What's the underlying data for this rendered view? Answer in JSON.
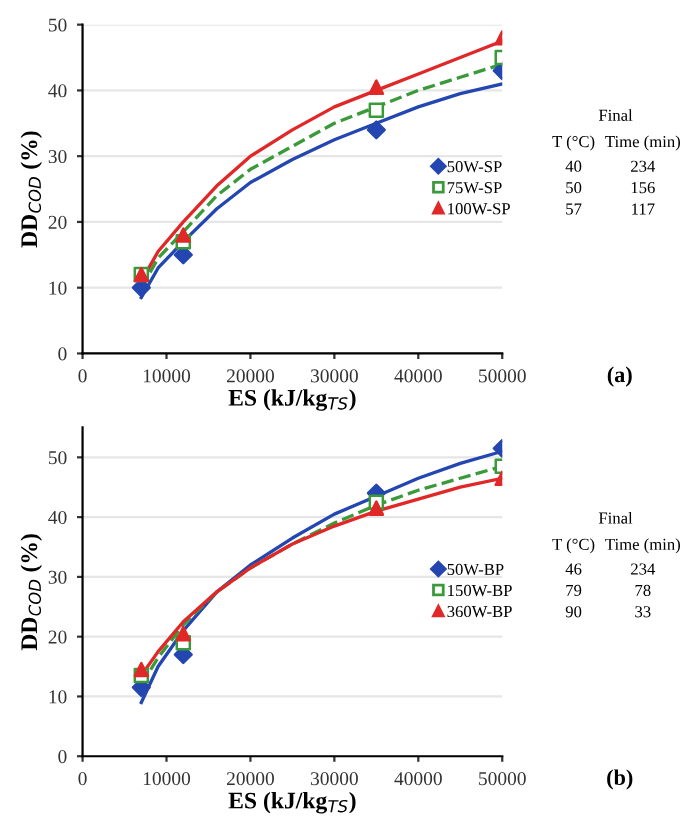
{
  "chart_data": [
    {
      "type": "scatter",
      "xlabel": "ES (kJ/kg$_{TS}$)",
      "ylabel": "DD$_{COD}$ (%)",
      "xlim": [
        0,
        50000
      ],
      "ylim": [
        0,
        50
      ],
      "xticks": [
        0,
        10000,
        20000,
        30000,
        40000,
        50000
      ],
      "yticks": [
        0,
        10,
        20,
        30,
        40,
        50
      ],
      "grid": "y",
      "legend": "right",
      "x": [
        7000,
        12000,
        35000,
        50000
      ],
      "series": [
        {
          "name": "50W-SP",
          "color": "#2446b0",
          "marker": "diamond",
          "values": [
            10,
            15,
            34,
            43
          ]
        },
        {
          "name": "75W-SP",
          "color": "#3a9a3a",
          "marker": "square",
          "values": [
            12,
            17,
            37,
            45
          ]
        },
        {
          "name": "100W-SP",
          "color": "#e02828",
          "marker": "triangle",
          "values": [
            12,
            18,
            40.5,
            48
          ]
        },
        {
          "type": "line",
          "color": "#2446b0",
          "line_style": "solid",
          "x": [
            7000,
            9000,
            12000,
            16000,
            20000,
            25000,
            30000,
            35000,
            40000,
            45000,
            50000
          ],
          "values": [
            8.5,
            13,
            17,
            22,
            26,
            29.5,
            32.5,
            35,
            37.5,
            39.5,
            41
          ]
        },
        {
          "type": "line",
          "color": "#3a9a3a",
          "line_style": "dashed",
          "x": [
            7000,
            9000,
            12000,
            16000,
            20000,
            25000,
            30000,
            35000,
            40000,
            45000,
            50000
          ],
          "values": [
            10,
            14.5,
            18.5,
            24,
            28,
            31.5,
            35,
            37.5,
            40,
            42,
            44
          ]
        },
        {
          "type": "line",
          "color": "#e02828",
          "line_style": "solid",
          "x": [
            7000,
            9000,
            12000,
            16000,
            20000,
            25000,
            30000,
            35000,
            40000,
            45000,
            50000
          ],
          "values": [
            11,
            15.5,
            20,
            25.5,
            30,
            34,
            37.5,
            40,
            42.5,
            45,
            47.5
          ]
        }
      ],
      "annotations": [
        "Final",
        "T (°C)",
        "Time (min)",
        "40",
        "234",
        "50",
        "156",
        "57",
        "117",
        "(a)"
      ]
    },
    {
      "type": "scatter",
      "xlabel": "ES (kJ/kg$_{TS}$)",
      "ylabel": "DD$_{COD}$ (%)",
      "xlim": [
        0,
        50000
      ],
      "ylim": [
        0,
        55
      ],
      "xticks": [
        0,
        10000,
        20000,
        30000,
        40000,
        50000
      ],
      "yticks": [
        0,
        10,
        20,
        30,
        40,
        50
      ],
      "grid": "y",
      "legend": "right",
      "x": [
        7000,
        12000,
        35000,
        50000
      ],
      "series": [
        {
          "name": "50W-BP",
          "color": "#2446b0",
          "marker": "diamond",
          "values": [
            11.5,
            17,
            44,
            51.5
          ]
        },
        {
          "name": "150W-BP",
          "color": "#3a9a3a",
          "marker": "square",
          "values": [
            13.5,
            19,
            42.5,
            48.5
          ]
        },
        {
          "name": "360W-BP",
          "color": "#e02828",
          "marker": "triangle",
          "values": [
            14.5,
            20.5,
            41.5,
            46.5
          ]
        },
        {
          "type": "line",
          "color": "#2446b0",
          "line_style": "solid",
          "x": [
            7000,
            9000,
            12000,
            16000,
            20000,
            25000,
            30000,
            35000,
            40000,
            45000,
            50000
          ],
          "values": [
            9,
            15,
            21,
            27.5,
            32,
            36.5,
            40.5,
            43.5,
            46.5,
            49,
            51
          ]
        },
        {
          "type": "line",
          "color": "#3a9a3a",
          "line_style": "dashed",
          "x": [
            7000,
            9000,
            12000,
            16000,
            20000,
            25000,
            30000,
            35000,
            40000,
            45000,
            50000
          ],
          "values": [
            12,
            16.5,
            22,
            27.5,
            31.5,
            35.5,
            39,
            42,
            44.5,
            46.5,
            48.5
          ]
        },
        {
          "type": "line",
          "color": "#e02828",
          "line_style": "solid",
          "x": [
            7000,
            9000,
            12000,
            16000,
            20000,
            25000,
            30000,
            35000,
            40000,
            45000,
            50000
          ],
          "values": [
            13.5,
            17.5,
            22.5,
            27.5,
            31.5,
            35.5,
            38.5,
            41,
            43,
            45,
            46.5
          ]
        }
      ],
      "annotations": [
        "Final",
        "T (°C)",
        "Time (min)",
        "46",
        "234",
        "79",
        "78",
        "90",
        "33",
        "(b)"
      ]
    }
  ]
}
